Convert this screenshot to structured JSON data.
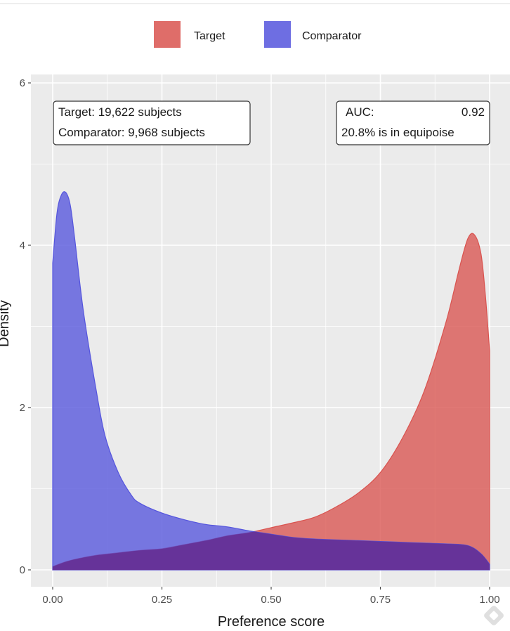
{
  "chart_data": {
    "type": "area",
    "xlabel": "Preference score",
    "ylabel": "Density",
    "xlim": [
      0,
      1
    ],
    "ylim": [
      0,
      6
    ],
    "x_ticks": [
      {
        "value": 0,
        "label": "0.00"
      },
      {
        "value": 0.25,
        "label": "0.25"
      },
      {
        "value": 0.5,
        "label": "0.50"
      },
      {
        "value": 0.75,
        "label": "0.75"
      },
      {
        "value": 1,
        "label": "1.00"
      }
    ],
    "y_ticks": [
      {
        "value": 0,
        "label": "0"
      },
      {
        "value": 2,
        "label": "2"
      },
      {
        "value": 4,
        "label": "4"
      },
      {
        "value": 6,
        "label": "6"
      }
    ],
    "grid": true,
    "legend_position": "top",
    "series": [
      {
        "name": "Target",
        "color": "#d9534f",
        "x": [
          0,
          0.03,
          0.06,
          0.1,
          0.15,
          0.2,
          0.25,
          0.3,
          0.35,
          0.4,
          0.45,
          0.5,
          0.55,
          0.6,
          0.65,
          0.7,
          0.75,
          0.8,
          0.85,
          0.9,
          0.93,
          0.95,
          0.965,
          0.98,
          0.99,
          1.0
        ],
        "values": [
          0.04,
          0.1,
          0.14,
          0.18,
          0.21,
          0.24,
          0.26,
          0.31,
          0.36,
          0.42,
          0.46,
          0.52,
          0.58,
          0.65,
          0.78,
          0.95,
          1.2,
          1.62,
          2.2,
          3.05,
          3.7,
          4.08,
          4.13,
          3.9,
          3.4,
          2.7
        ]
      },
      {
        "name": "Comparator",
        "color": "#5555dd",
        "x": [
          0,
          0.01,
          0.02,
          0.03,
          0.04,
          0.05,
          0.07,
          0.1,
          0.12,
          0.15,
          0.18,
          0.2,
          0.25,
          0.3,
          0.35,
          0.4,
          0.45,
          0.5,
          0.55,
          0.6,
          0.65,
          0.7,
          0.75,
          0.8,
          0.85,
          0.9,
          0.95,
          0.98,
          1.0
        ],
        "values": [
          3.78,
          4.4,
          4.62,
          4.65,
          4.5,
          4.1,
          3.2,
          2.2,
          1.65,
          1.2,
          0.92,
          0.82,
          0.7,
          0.62,
          0.56,
          0.53,
          0.48,
          0.44,
          0.4,
          0.38,
          0.37,
          0.36,
          0.35,
          0.34,
          0.33,
          0.32,
          0.3,
          0.2,
          0.07
        ]
      }
    ],
    "annotations": {
      "left": [
        "Target: 19,622 subjects",
        "Comparator: 9,968 subjects"
      ],
      "right_auc_label": "AUC:",
      "right_auc_value": "0.92",
      "right_line2": "20.8% is in equipoise"
    }
  },
  "colors": {
    "panel_background": "#ebebeb",
    "gridline": "#ffffff",
    "overlap": "#663399"
  }
}
